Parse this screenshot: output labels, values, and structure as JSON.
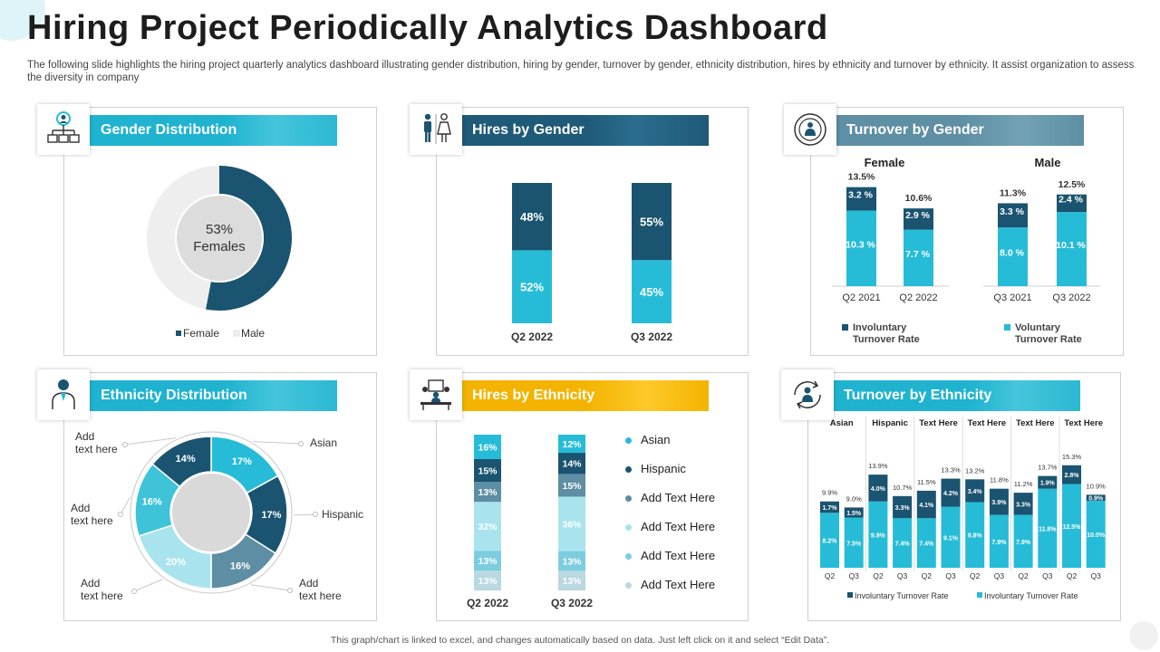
{
  "header": {
    "title": "Hiring Project Periodically Analytics Dashboard",
    "subtitle": "The following slide highlights the hiring project quarterly analytics dashboard illustrating gender distribution, hiring by gender, turnover by gender, ethnicity distribution, hires by ethnicity and turnover by ethnicity. It assist organization to assess the diversity in company"
  },
  "footer": "This graph/chart is linked to excel, and changes automatically based on data. Just left click on it and select “Edit Data”.",
  "colors": {
    "navy": "#1a5470",
    "teal": "#26bcd7",
    "gray": "#cccccc"
  },
  "panels": {
    "gender": {
      "title": "Gender Distribution"
    },
    "hires_gender": {
      "title": "Hires by Gender"
    },
    "turnover_gender": {
      "title": "Turnover by Gender"
    },
    "ethnicity": {
      "title": "Ethnicity Distribution"
    },
    "hires_ethnicity": {
      "title": "Hires by Ethnicity"
    },
    "turnover_ethnicity": {
      "title": "Turnover by Ethnicity"
    }
  },
  "chart_data": [
    {
      "id": "gender_distribution",
      "type": "pie",
      "title": "Gender Distribution",
      "center_value": "53%",
      "center_label": "Females",
      "slices": [
        {
          "label": "Female",
          "value": 53,
          "color": "#1a5470"
        },
        {
          "label": "Male",
          "value": 47,
          "color": "#eeeeee"
        }
      ],
      "legend": [
        "Female",
        "Male"
      ]
    },
    {
      "id": "hires_by_gender",
      "type": "bar",
      "stacked": true,
      "title": "Hires by Gender",
      "categories": [
        "Q2 2022",
        "Q3 2022"
      ],
      "series": [
        {
          "name": "Female",
          "values": [
            52,
            45
          ],
          "labels": [
            "52%",
            "45%"
          ],
          "color": "#26bcd7"
        },
        {
          "name": "Male",
          "values": [
            48,
            55
          ],
          "labels": [
            "48%",
            "55%"
          ],
          "color": "#1a5470"
        }
      ],
      "ylim": [
        0,
        100
      ]
    },
    {
      "id": "turnover_by_gender",
      "type": "bar",
      "stacked": true,
      "title": "Turnover by Gender",
      "groups": [
        "Female",
        "Male"
      ],
      "categories": [
        "Q2 2021",
        "Q2 2022",
        "Q3 2021",
        "Q3 2022"
      ],
      "totals": [
        "13.5%",
        "10.6%",
        "11.3%",
        "12.5%"
      ],
      "series": [
        {
          "name": "Voluntary Turnover Rate",
          "values": [
            10.3,
            7.7,
            8.0,
            10.1
          ],
          "labels": [
            "10.3 %",
            "7.7 %",
            "8.0 %",
            "10.1 %"
          ],
          "color": "#26bcd7"
        },
        {
          "name": "Involuntary Turnover Rate",
          "values": [
            3.2,
            2.9,
            3.3,
            2.4
          ],
          "labels": [
            "3.2 %",
            "2.9 %",
            "3.3 %",
            "2.4 %"
          ],
          "color": "#1a5470"
        }
      ],
      "legend": [
        {
          "label1": "Involuntary",
          "label2": "Turnover Rate",
          "color": "#1a5470"
        },
        {
          "label1": "Voluntary",
          "label2": "Turnover Rate",
          "color": "#26bcd7"
        }
      ],
      "ylim": [
        0,
        16
      ]
    },
    {
      "id": "ethnicity_distribution",
      "type": "pie",
      "title": "Ethnicity Distribution",
      "slices": [
        {
          "label": "Asian",
          "value": 17,
          "text": "17%",
          "color": "#26bcd7"
        },
        {
          "label": "Hispanic",
          "value": 17,
          "text": "17%",
          "color": "#1a5470"
        },
        {
          "label": "Add text here",
          "value": 16,
          "text": "16%",
          "color": "#5e8ea3"
        },
        {
          "label": "Add text here",
          "value": 20,
          "text": "20%",
          "color": "#a9e4ee"
        },
        {
          "label": "Add text here",
          "value": 16,
          "text": "16%",
          "color": "#3ec3d9"
        },
        {
          "label": "Add text here",
          "value": 14,
          "text": "14%",
          "color": "#1a5470"
        }
      ],
      "callouts": [
        {
          "l1": "Asian",
          "l2": ""
        },
        {
          "l1": "Hispanic",
          "l2": ""
        },
        {
          "l1": "Add",
          "l2": "text here"
        },
        {
          "l1": "Add",
          "l2": "text here"
        },
        {
          "l1": "Add",
          "l2": "text here"
        },
        {
          "l1": "Add",
          "l2": "text here"
        }
      ]
    },
    {
      "id": "hires_by_ethnicity",
      "type": "bar",
      "stacked": true,
      "title": "Hires by Ethnicity",
      "categories": [
        "Q2 2022",
        "Q3 2022"
      ],
      "series": [
        {
          "name": "Add Text Here",
          "values": [
            13,
            13
          ],
          "labels": [
            "13%",
            "13%"
          ],
          "color": "#b9d8e0"
        },
        {
          "name": "Add Text Here",
          "values": [
            13,
            13
          ],
          "labels": [
            "13%",
            "13%"
          ],
          "color": "#7ccde0"
        },
        {
          "name": "Add Text Here",
          "values": [
            32,
            36
          ],
          "labels": [
            "32%",
            "36%"
          ],
          "color": "#a9e4ee"
        },
        {
          "name": "Add Text Here",
          "values": [
            13,
            15
          ],
          "labels": [
            "13%",
            "15%"
          ],
          "color": "#5e8ea3"
        },
        {
          "name": "Hispanic",
          "values": [
            15,
            14
          ],
          "labels": [
            "15%",
            "14%"
          ],
          "color": "#1a5470"
        },
        {
          "name": "Asian",
          "values": [
            16,
            12
          ],
          "labels": [
            "16%",
            "12%"
          ],
          "color": "#26bcd7"
        }
      ],
      "legend": [
        {
          "label": "Asian",
          "color": "#26bcd7"
        },
        {
          "label": "Hispanic",
          "color": "#1a5470"
        },
        {
          "label": "Add Text Here",
          "color": "#5e8ea3"
        },
        {
          "label": "Add Text Here",
          "color": "#a9e4ee"
        },
        {
          "label": "Add Text Here",
          "color": "#7ccde0"
        },
        {
          "label": "Add Text Here",
          "color": "#b9d8e0"
        }
      ],
      "ylim": [
        0,
        100
      ]
    },
    {
      "id": "turnover_by_ethnicity",
      "type": "bar",
      "stacked": true,
      "title": "Turnover by Ethnicity",
      "groups": [
        "Asian",
        "Hispanic",
        "Text Here",
        "Text Here",
        "Text Here",
        "Text Here"
      ],
      "categories": [
        "Q2",
        "Q3",
        "Q2",
        "Q3",
        "Q2",
        "Q3",
        "Q2",
        "Q3",
        "Q2",
        "Q3",
        "Q2",
        "Q3"
      ],
      "totals": [
        "9.9%",
        "9.0%",
        "13.9%",
        "10.7%",
        "11.5%",
        "13.3%",
        "13.2%",
        "11.8%",
        "11.2%",
        "13.7%",
        "15.3%",
        "10.9%"
      ],
      "series": [
        {
          "name": "Involuntary Turnover Rate",
          "values": [
            8.2,
            7.5,
            9.9,
            7.4,
            7.4,
            9.1,
            9.8,
            7.9,
            7.9,
            11.8,
            12.5,
            10.0
          ],
          "labels": [
            "8.2%",
            "7.5%",
            "9.9%",
            "7.4%",
            "7.4%",
            "9.1%",
            "9.8%",
            "7.9%",
            "7.9%",
            "11.8%",
            "12.5%",
            "10.0%"
          ],
          "color": "#26bcd7"
        },
        {
          "name": "Involuntary Turnover Rate",
          "values": [
            1.7,
            1.5,
            4.0,
            3.3,
            4.1,
            4.2,
            3.4,
            3.9,
            3.3,
            1.9,
            2.8,
            0.9
          ],
          "labels": [
            "1.7%",
            "1.5%",
            "4.0%",
            "3.3%",
            "4.1%",
            "4.2%",
            "3.4%",
            "3.9%",
            "3.3%",
            "1.9%",
            "2.8%",
            "0.9%"
          ],
          "color": "#1a5470"
        }
      ],
      "legend": [
        {
          "label": "Involuntary Turnover Rate",
          "color": "#1a5470"
        },
        {
          "label": "Involuntary Turnover Rate",
          "color": "#26bcd7"
        }
      ],
      "ylim": [
        0,
        16
      ]
    }
  ]
}
